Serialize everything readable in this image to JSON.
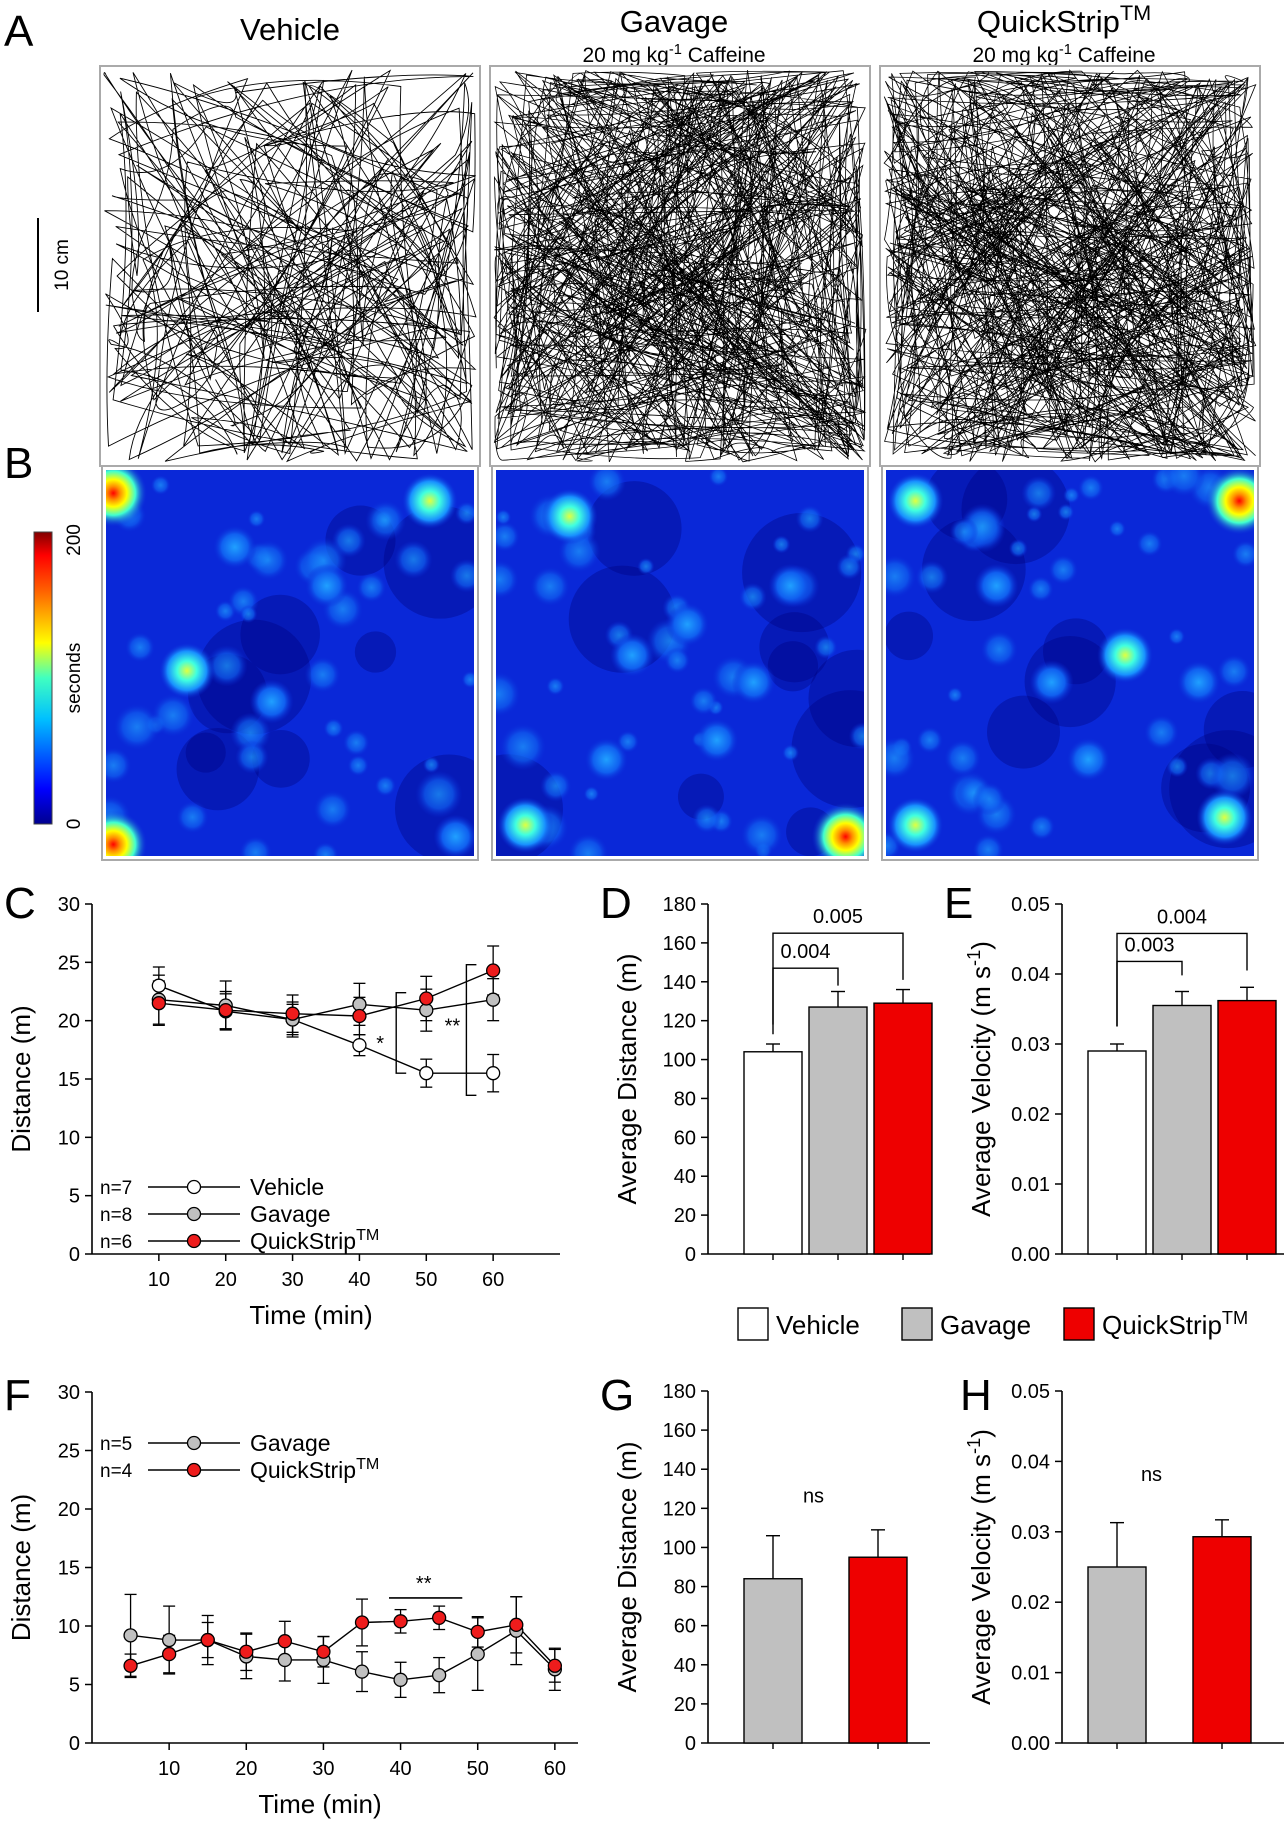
{
  "panels": {
    "A": "A",
    "B": "B",
    "C": "C",
    "D": "D",
    "E": "E",
    "F": "F",
    "G": "G",
    "H": "H"
  },
  "track_panel": {
    "columns": [
      {
        "title": "Vehicle",
        "subtitle": "",
        "density": 1
      },
      {
        "title": "Gavage",
        "subtitle": "20 mg kg-1 Caffeine",
        "density": 2
      },
      {
        "title": "QuickStrip™",
        "subtitle": "20 mg kg-1 Caffeine",
        "density": 2
      }
    ],
    "scale_bar": "10 cm"
  },
  "heatmap": {
    "colorbar_label": "seconds",
    "colorbar_min": "0",
    "colorbar_max": "200",
    "colorbar_colors": [
      "#00008f",
      "#0000ff",
      "#0080ff",
      "#00ffff",
      "#80ff80",
      "#ffff00",
      "#ff8000",
      "#ff0000",
      "#800000"
    ],
    "background_color": "#0a28d8",
    "hotspots": [
      [
        [
          0.02,
          0.06,
          1.0
        ],
        [
          0.02,
          0.97,
          0.85
        ],
        [
          0.22,
          0.52,
          0.6
        ],
        [
          0.35,
          0.2,
          0.35
        ],
        [
          0.88,
          0.08,
          0.45
        ],
        [
          0.6,
          0.3,
          0.2
        ],
        [
          0.95,
          0.95,
          0.3
        ],
        [
          0.45,
          0.6,
          0.2
        ]
      ],
      [
        [
          0.2,
          0.12,
          0.45
        ],
        [
          0.95,
          0.95,
          0.95
        ],
        [
          0.08,
          0.92,
          0.5
        ],
        [
          0.37,
          0.48,
          0.35
        ],
        [
          0.52,
          0.4,
          0.3
        ],
        [
          0.7,
          0.55,
          0.25
        ],
        [
          0.6,
          0.7,
          0.3
        ],
        [
          0.3,
          0.75,
          0.3
        ],
        [
          0.8,
          0.3,
          0.25
        ]
      ],
      [
        [
          0.96,
          0.08,
          0.95
        ],
        [
          0.08,
          0.08,
          0.5
        ],
        [
          0.92,
          0.9,
          0.7
        ],
        [
          0.08,
          0.92,
          0.7
        ],
        [
          0.65,
          0.48,
          0.5
        ],
        [
          0.45,
          0.55,
          0.3
        ],
        [
          0.55,
          0.75,
          0.3
        ],
        [
          0.3,
          0.3,
          0.25
        ],
        [
          0.85,
          0.55,
          0.25
        ]
      ]
    ]
  },
  "chart_data": [
    {
      "id": "C",
      "type": "line",
      "title": "",
      "xlabel": "Time (min)",
      "ylabel": "Distance (m)",
      "x": [
        10,
        20,
        30,
        40,
        50,
        60
      ],
      "xlim": [
        0,
        70
      ],
      "ylim": [
        0,
        30
      ],
      "xticks": [
        10,
        20,
        30,
        40,
        50,
        60
      ],
      "yticks": [
        0,
        5,
        10,
        15,
        20,
        25,
        30
      ],
      "series": [
        {
          "name": "Vehicle",
          "n": "n=7",
          "color": "#ffffff",
          "values": [
            23.0,
            20.8,
            20.1,
            17.9,
            15.5,
            15.5
          ],
          "errors": [
            1.6,
            1.5,
            1.3,
            0.9,
            1.2,
            1.6
          ]
        },
        {
          "name": "Gavage",
          "n": "n=8",
          "color": "#c0c0c0",
          "values": [
            21.8,
            21.3,
            20.1,
            21.4,
            20.9,
            21.8
          ],
          "errors": [
            2.1,
            2.1,
            1.5,
            1.8,
            1.8,
            1.8
          ]
        },
        {
          "name": "QuickStrip™",
          "n": "n=6",
          "color": "#ee1c1c",
          "values": [
            21.5,
            20.9,
            20.6,
            20.4,
            21.9,
            24.3
          ],
          "errors": [
            1.9,
            1.6,
            1.6,
            1.6,
            1.9,
            2.1
          ]
        }
      ],
      "annotations": [
        "*",
        "**"
      ]
    },
    {
      "id": "D",
      "type": "bar",
      "ylabel": "Average Distance (m)",
      "categories": [
        "Vehicle",
        "Gavage",
        "QuickStrip™"
      ],
      "values": [
        104,
        127,
        129
      ],
      "errors": [
        4,
        8,
        7
      ],
      "colors": [
        "#ffffff",
        "#c0c0c0",
        "#ee0000"
      ],
      "ylim": [
        0,
        180
      ],
      "yticks": [
        0,
        20,
        40,
        60,
        80,
        100,
        120,
        140,
        160,
        180
      ],
      "comparisons": [
        {
          "from": 0,
          "to": 1,
          "label": "0.004"
        },
        {
          "from": 0,
          "to": 2,
          "label": "0.005"
        }
      ]
    },
    {
      "id": "E",
      "type": "bar",
      "ylabel": "Average Velocity (m s-1)",
      "categories": [
        "Vehicle",
        "Gavage",
        "QuickStrip™"
      ],
      "values": [
        0.029,
        0.0355,
        0.0362
      ],
      "errors": [
        0.001,
        0.002,
        0.0019
      ],
      "colors": [
        "#ffffff",
        "#c0c0c0",
        "#ee0000"
      ],
      "ylim": [
        0,
        0.05
      ],
      "yticks": [
        "0.00",
        "0.01",
        "0.02",
        "0.03",
        "0.04",
        "0.05"
      ],
      "comparisons": [
        {
          "from": 0,
          "to": 1,
          "label": "0.003"
        },
        {
          "from": 0,
          "to": 2,
          "label": "0.004"
        }
      ]
    },
    {
      "id": "F",
      "type": "line",
      "xlabel": "Time (min)",
      "ylabel": "Distance (m)",
      "x": [
        5,
        10,
        15,
        20,
        25,
        30,
        35,
        40,
        45,
        50,
        55,
        60
      ],
      "xlim": [
        0,
        63
      ],
      "ylim": [
        0,
        30
      ],
      "xticks": [
        10,
        20,
        30,
        40,
        50,
        60
      ],
      "yticks": [
        0,
        5,
        10,
        15,
        20,
        25,
        30
      ],
      "series": [
        {
          "name": "Gavage",
          "n": "n=5",
          "color": "#c0c0c0",
          "values": [
            9.2,
            8.8,
            8.8,
            7.4,
            7.1,
            7.1,
            6.1,
            5.4,
            5.8,
            7.6,
            9.6,
            6.3
          ],
          "errors": [
            3.5,
            2.9,
            2.1,
            1.9,
            1.8,
            2.0,
            1.7,
            1.5,
            1.5,
            3.1,
            2.9,
            1.8
          ]
        },
        {
          "name": "QuickStrip™",
          "n": "n=4",
          "color": "#ee1c1c",
          "values": [
            6.6,
            7.6,
            8.8,
            7.8,
            8.7,
            7.8,
            10.3,
            10.4,
            10.7,
            9.5,
            10.1,
            6.6
          ],
          "errors": [
            1.0,
            1.6,
            1.5,
            1.6,
            1.7,
            1.3,
            2.0,
            1.0,
            1.0,
            1.3,
            2.4,
            1.4
          ]
        }
      ],
      "annotations": [
        "**"
      ]
    },
    {
      "id": "G",
      "type": "bar",
      "ylabel": "Average Distance (m)",
      "categories": [
        "Gavage",
        "QuickStrip™"
      ],
      "values": [
        84,
        95
      ],
      "errors": [
        22,
        14
      ],
      "colors": [
        "#c0c0c0",
        "#ee0000"
      ],
      "ylim": [
        0,
        180
      ],
      "yticks": [
        0,
        20,
        40,
        60,
        80,
        100,
        120,
        140,
        160,
        180
      ],
      "annotation": "ns"
    },
    {
      "id": "H",
      "type": "bar",
      "ylabel": "Average Velocity (m s-1)",
      "categories": [
        "Gavage",
        "QuickStrip™"
      ],
      "values": [
        0.025,
        0.0293
      ],
      "errors": [
        0.0063,
        0.0024
      ],
      "colors": [
        "#c0c0c0",
        "#ee0000"
      ],
      "ylim": [
        0,
        0.05
      ],
      "yticks": [
        "0.00",
        "0.01",
        "0.02",
        "0.03",
        "0.04",
        "0.05"
      ],
      "annotation": "ns"
    }
  ],
  "bar_legend": [
    {
      "label": "Vehicle",
      "color": "#ffffff"
    },
    {
      "label": "Gavage",
      "color": "#c0c0c0"
    },
    {
      "label": "QuickStrip™",
      "color": "#ee0000"
    }
  ]
}
